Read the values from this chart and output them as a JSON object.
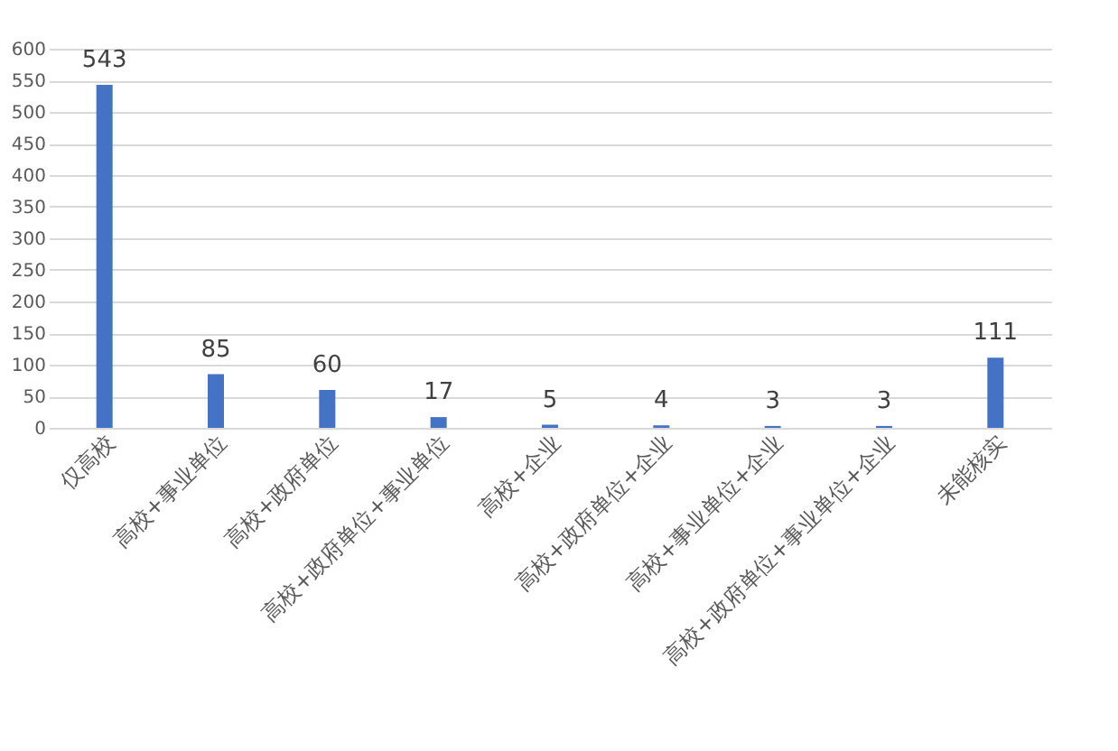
{
  "chart_data": {
    "type": "bar",
    "categories": [
      "仅高校",
      "高校+事业单位",
      "高校+政府单位",
      "高校+政府单位+事业单位",
      "高校+企业",
      "高校+政府单位+企业",
      "高校+事业单位+企业",
      "高校+政府单位+事业单位+企业",
      "未能核实"
    ],
    "values": [
      543,
      85,
      60,
      17,
      5,
      4,
      3,
      3,
      111
    ],
    "color": "#4472c4",
    "data_labels": true,
    "ylim": [
      0,
      600
    ],
    "yticks": [
      0,
      50,
      100,
      150,
      200,
      250,
      300,
      350,
      400,
      450,
      500,
      550,
      600
    ],
    "grid": "y"
  }
}
